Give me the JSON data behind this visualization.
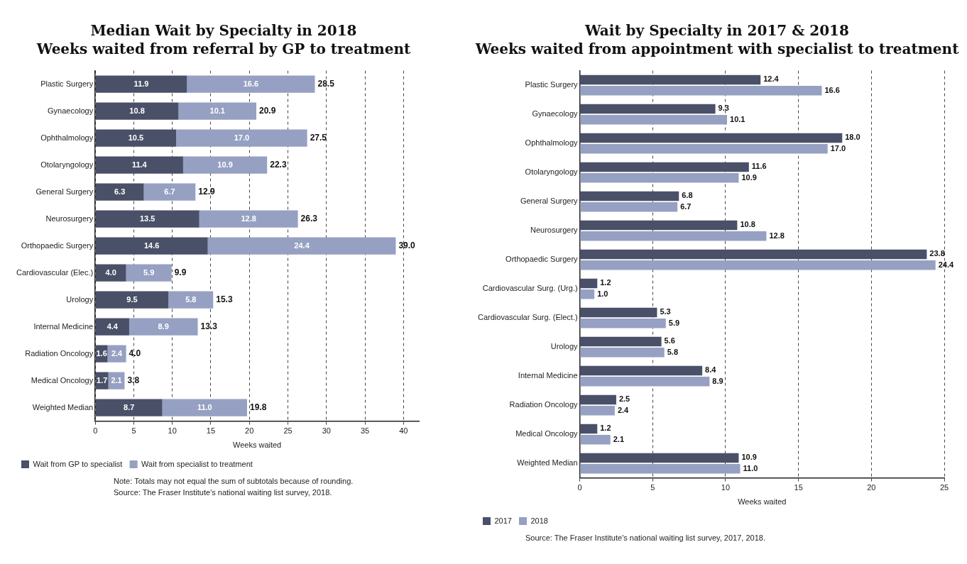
{
  "chart_data": [
    {
      "type": "bar",
      "title": "Median Wait by Specialty in 2018",
      "subtitle": "Weeks waited from referral by GP to treatment",
      "orientation": "horizontal",
      "stacked": true,
      "categories": [
        "Plastic Surgery",
        "Gynaecology",
        "Ophthalmology",
        "Otolaryngology",
        "General Surgery",
        "Neurosurgery",
        "Orthopaedic Surgery",
        "Cardiovascular (Elec.)",
        "Urology",
        "Internal Medicine",
        "Radiation Oncology",
        "Medical Oncology",
        "Weighted Median"
      ],
      "series": [
        {
          "name": "Wait from GP to specialist",
          "color": "#4a5068",
          "values": [
            11.9,
            10.8,
            10.5,
            11.4,
            6.3,
            13.5,
            14.6,
            4,
            9.5,
            4.4,
            1.6,
            1.7,
            8.7
          ],
          "value_labels": [
            "11.9",
            "10.8",
            "10.5",
            "11.4",
            "6.3",
            "13.5",
            "14.6",
            "4.0",
            "9.5",
            "4.4",
            "1.6",
            "1.7",
            "8.7"
          ]
        },
        {
          "name": "Wait from specialist to treatment",
          "color": "#96a0c2",
          "values": [
            16.6,
            10.1,
            17,
            10.9,
            6.7,
            12.8,
            24.4,
            5.9,
            5.8,
            8.9,
            2.4,
            2.1,
            11
          ],
          "value_labels": [
            "16.6",
            "10.1",
            "17.0",
            "10.9",
            "6.7",
            "12.8",
            "24.4",
            "5.9",
            "5.8",
            "8.9",
            "2.4",
            "2.1",
            "11.0"
          ]
        }
      ],
      "totals": [
        "28.5",
        "20.9",
        "27.5",
        "22.3",
        "12.9",
        "26.3",
        "39.0",
        "9.9",
        "15.3",
        "13.3",
        "4.0",
        "3.8",
        "19.8"
      ],
      "xlabel": "Weeks waited",
      "xlim": [
        0,
        42
      ],
      "xticks": [
        0,
        5,
        10,
        15,
        20,
        25,
        30,
        35,
        40
      ],
      "grid": "x",
      "legend": "bottom",
      "annotations": [
        "Note: Totals may not equal the sum of subtotals because of rounding.",
        "Source: The Fraser Institute's national waiting list survey, 2018."
      ]
    },
    {
      "type": "bar",
      "title": "Wait by Specialty in 2017 & 2018",
      "subtitle": "Weeks waited from appointment with specialist to treatment",
      "orientation": "horizontal",
      "categories": [
        "Plastic Surgery",
        "Gynaecology",
        "Ophthalmology",
        "Otolaryngology",
        "General Surgery",
        "Neurosurgery",
        "Orthopaedic Surgery",
        "Cardiovascular Surg. (Urg.)",
        "Cardiovascular Surg. (Elect.)",
        "Urology",
        "Internal Medicine",
        "Radiation Oncology",
        "Medical Oncology",
        "Weighted Median"
      ],
      "series": [
        {
          "name": "2017",
          "color": "#4a5068",
          "values": [
            12.4,
            9.3,
            18,
            11.6,
            6.8,
            10.8,
            23.8,
            1.2,
            5.3,
            5.6,
            8.4,
            2.5,
            1.2,
            10.9
          ],
          "value_labels": [
            "12.4",
            "9.3",
            "18.0",
            "11.6",
            "6.8",
            "10.8",
            "23.8",
            "1.2",
            "5.3",
            "5.6",
            "8.4",
            "2.5",
            "1.2",
            "10.9"
          ]
        },
        {
          "name": "2018",
          "color": "#96a0c2",
          "values": [
            16.6,
            10.1,
            17,
            10.9,
            6.7,
            12.8,
            24.4,
            1,
            5.9,
            5.8,
            8.9,
            2.4,
            2.1,
            11
          ],
          "value_labels": [
            "16.6",
            "10.1",
            "17.0",
            "10.9",
            "6.7",
            "12.8",
            "24.4",
            "1.0",
            "5.9",
            "5.8",
            "8.9",
            "2.4",
            "2.1",
            "11.0"
          ]
        }
      ],
      "xlabel": "Weeks waited",
      "xlim": [
        0,
        25
      ],
      "xticks": [
        0,
        5,
        10,
        15,
        20,
        25
      ],
      "grid": "x",
      "legend": "bottom",
      "annotations": [
        "Source: The Fraser Institute's national waiting list survey, 2017, 2018."
      ]
    }
  ]
}
